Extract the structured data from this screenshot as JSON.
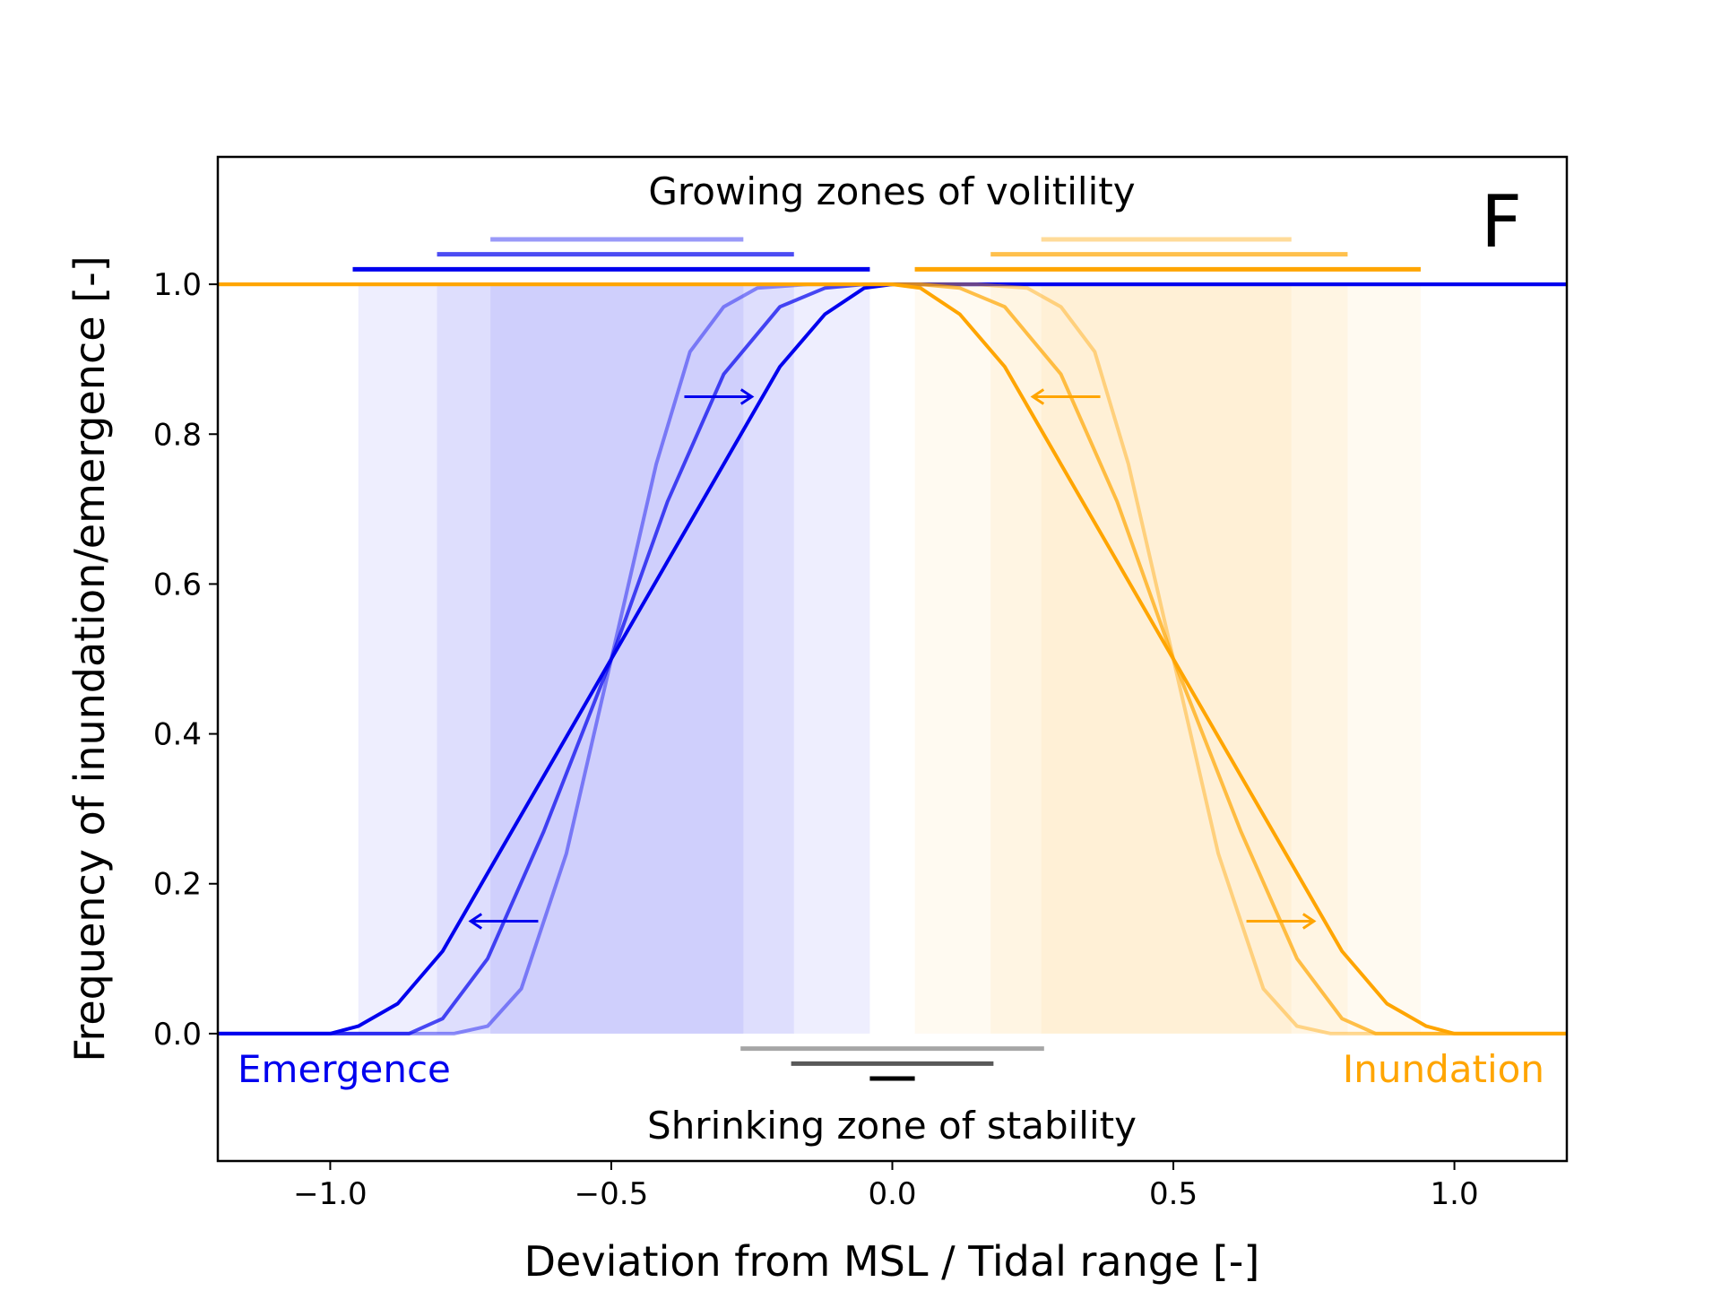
{
  "chart_data": {
    "type": "line",
    "panel_label": "F",
    "xlabel": "Deviation from MSL / Tidal range [-]",
    "ylabel": "Frequency of inundation/emergence [-]",
    "xlim": [
      -1.2,
      1.2
    ],
    "ylim": [
      -0.17,
      1.17
    ],
    "xticks": [
      -1.0,
      -0.5,
      0.0,
      0.5,
      1.0
    ],
    "xtick_labels": [
      "−1.0",
      "−0.5",
      "0.0",
      "0.5",
      "1.0"
    ],
    "yticks": [
      0.0,
      0.2,
      0.4,
      0.6,
      0.8,
      1.0
    ],
    "ytick_labels": [
      "0.0",
      "0.2",
      "0.4",
      "0.6",
      "0.8",
      "1.0"
    ],
    "grid": false,
    "annotations": {
      "top": "Growing zones of volitility",
      "bottom": "Shrinking zone of stability",
      "left": "Emergence",
      "right": "Inundation"
    },
    "colors": {
      "emergence": "#0000ee",
      "inundation": "#ffa500",
      "stability": "#000000"
    },
    "series": [
      {
        "family": "emergence",
        "opacity": 0.42,
        "x": [
          -1.2,
          -0.78,
          -0.72,
          -0.66,
          -0.58,
          -0.5,
          -0.42,
          -0.36,
          -0.3,
          -0.24,
          -0.15,
          0.0,
          1.2
        ],
        "y": [
          0.0,
          0.0,
          0.01,
          0.06,
          0.24,
          0.5,
          0.76,
          0.91,
          0.97,
          0.995,
          1.0,
          1.0,
          1.0
        ]
      },
      {
        "family": "emergence",
        "opacity": 0.7,
        "x": [
          -1.2,
          -0.86,
          -0.8,
          -0.72,
          -0.62,
          -0.5,
          -0.4,
          -0.3,
          -0.2,
          -0.12,
          -0.05,
          0.0,
          1.2
        ],
        "y": [
          0.0,
          0.0,
          0.02,
          0.1,
          0.27,
          0.5,
          0.71,
          0.88,
          0.97,
          0.995,
          1.0,
          1.0,
          1.0
        ]
      },
      {
        "family": "emergence",
        "opacity": 1.0,
        "x": [
          -1.2,
          -1.0,
          -0.95,
          -0.88,
          -0.8,
          -0.7,
          -0.6,
          -0.5,
          -0.4,
          -0.3,
          -0.2,
          -0.12,
          -0.05,
          0.0,
          1.2
        ],
        "y": [
          0.0,
          0.0,
          0.01,
          0.04,
          0.11,
          0.24,
          0.37,
          0.5,
          0.63,
          0.76,
          0.89,
          0.96,
          0.995,
          1.0,
          1.0
        ]
      },
      {
        "family": "inundation",
        "opacity": 0.42,
        "x": [
          -1.2,
          0.0,
          0.15,
          0.24,
          0.3,
          0.36,
          0.42,
          0.5,
          0.58,
          0.66,
          0.72,
          0.78,
          1.2
        ],
        "y": [
          1.0,
          1.0,
          1.0,
          0.995,
          0.97,
          0.91,
          0.76,
          0.5,
          0.24,
          0.06,
          0.01,
          0.0,
          0.0
        ]
      },
      {
        "family": "inundation",
        "opacity": 0.7,
        "x": [
          -1.2,
          0.0,
          0.05,
          0.12,
          0.2,
          0.3,
          0.4,
          0.5,
          0.62,
          0.72,
          0.8,
          0.86,
          1.2
        ],
        "y": [
          1.0,
          1.0,
          1.0,
          0.995,
          0.97,
          0.88,
          0.71,
          0.5,
          0.27,
          0.1,
          0.02,
          0.0,
          0.0
        ]
      },
      {
        "family": "inundation",
        "opacity": 1.0,
        "x": [
          -1.2,
          0.0,
          0.05,
          0.12,
          0.2,
          0.3,
          0.4,
          0.5,
          0.6,
          0.7,
          0.8,
          0.88,
          0.95,
          1.0,
          1.2
        ],
        "y": [
          1.0,
          1.0,
          0.995,
          0.96,
          0.89,
          0.76,
          0.63,
          0.5,
          0.37,
          0.24,
          0.11,
          0.04,
          0.01,
          0.0,
          0.0
        ]
      }
    ],
    "bands": [
      {
        "family": "emergence",
        "x": [
          -0.95,
          -0.04
        ]
      },
      {
        "family": "emergence",
        "x": [
          -0.81,
          -0.175
        ]
      },
      {
        "family": "emergence",
        "x": [
          -0.715,
          -0.265
        ]
      },
      {
        "family": "inundation",
        "x": [
          0.04,
          0.94
        ]
      },
      {
        "family": "inundation",
        "x": [
          0.175,
          0.81
        ]
      },
      {
        "family": "inundation",
        "x": [
          0.265,
          0.71
        ]
      }
    ],
    "zone_bars": [
      {
        "family": "emergence",
        "y": 1.02,
        "x": [
          -0.96,
          -0.04
        ],
        "opacity": 1.0
      },
      {
        "family": "emergence",
        "y": 1.04,
        "x": [
          -0.81,
          -0.175
        ],
        "opacity": 0.7
      },
      {
        "family": "emergence",
        "y": 1.06,
        "x": [
          -0.715,
          -0.265
        ],
        "opacity": 0.4
      },
      {
        "family": "inundation",
        "y": 1.02,
        "x": [
          0.04,
          0.94
        ],
        "opacity": 1.0
      },
      {
        "family": "inundation",
        "y": 1.04,
        "x": [
          0.175,
          0.81
        ],
        "opacity": 0.7
      },
      {
        "family": "inundation",
        "y": 1.06,
        "x": [
          0.265,
          0.71
        ],
        "opacity": 0.4
      },
      {
        "family": "stability",
        "y": -0.02,
        "x": [
          -0.27,
          0.27
        ],
        "opacity": 0.35
      },
      {
        "family": "stability",
        "y": -0.04,
        "x": [
          -0.18,
          0.18
        ],
        "opacity": 0.65
      },
      {
        "family": "stability",
        "y": -0.06,
        "x": [
          -0.04,
          0.04
        ],
        "opacity": 1.0
      }
    ],
    "arrows": [
      {
        "family": "emergence",
        "from": [
          -0.37,
          0.85
        ],
        "to": [
          -0.25,
          0.85
        ]
      },
      {
        "family": "emergence",
        "from": [
          -0.63,
          0.15
        ],
        "to": [
          -0.75,
          0.15
        ]
      },
      {
        "family": "inundation",
        "from": [
          0.37,
          0.85
        ],
        "to": [
          0.25,
          0.85
        ]
      },
      {
        "family": "inundation",
        "from": [
          0.63,
          0.15
        ],
        "to": [
          0.75,
          0.15
        ]
      }
    ]
  }
}
